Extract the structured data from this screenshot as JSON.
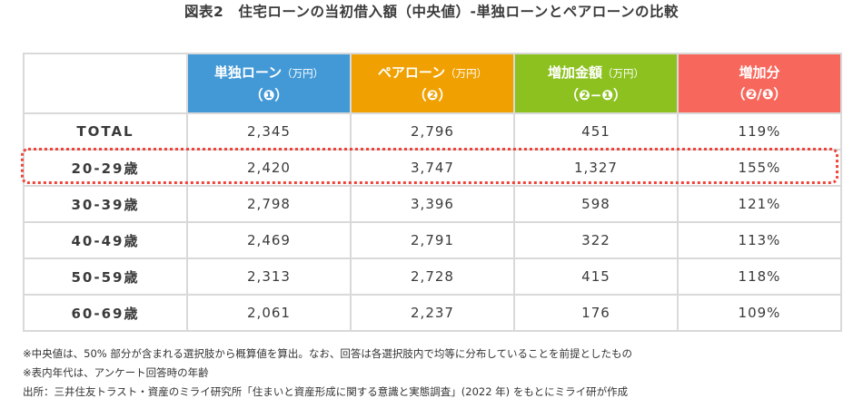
{
  "title": "図表2　住宅ローンの当初借入額（中央値）-単独ローンとペアローンの比較",
  "colors": {
    "single_loan": "#4399d6",
    "pair_loan": "#f0a000",
    "increase_amount": "#8cc11f",
    "increase_ratio": "#f8675c",
    "highlight_border": "#f0443a",
    "grid": "#d9d9d9"
  },
  "table": {
    "headers": [
      {
        "label": "",
        "unit": "",
        "sub": ""
      },
      {
        "label": "単独ローン",
        "unit": "（万円）",
        "sub": "（❶）"
      },
      {
        "label": "ペアローン",
        "unit": "（万円）",
        "sub": "（❷）"
      },
      {
        "label": "増加金額",
        "unit": "（万円）",
        "sub": "（❷−❶）"
      },
      {
        "label": "増加分",
        "unit": "",
        "sub": "（❷/❶）"
      }
    ],
    "rows": [
      {
        "label": "TOTAL",
        "single": "2,345",
        "pair": "2,796",
        "increase": "451",
        "ratio": "119%"
      },
      {
        "label": "20-29歳",
        "single": "2,420",
        "pair": "3,747",
        "increase": "1,327",
        "ratio": "155%"
      },
      {
        "label": "30-39歳",
        "single": "2,798",
        "pair": "3,396",
        "increase": "598",
        "ratio": "121%"
      },
      {
        "label": "40-49歳",
        "single": "2,469",
        "pair": "2,791",
        "increase": "322",
        "ratio": "113%"
      },
      {
        "label": "50-59歳",
        "single": "2,313",
        "pair": "2,728",
        "increase": "415",
        "ratio": "118%"
      },
      {
        "label": "60-69歳",
        "single": "2,061",
        "pair": "2,237",
        "increase": "176",
        "ratio": "109%"
      }
    ],
    "highlighted_row": "20-29歳"
  },
  "notes": [
    "※中央値は、50% 部分が含まれる選択肢から概算値を算出。なお、回答は各選択肢内で均等に分布していることを前提としたもの",
    "※表内年代は、アンケート回答時の年齢",
    "出所：三井住友トラスト・資産のミライ研究所「住まいと資産形成に関する意識と実態調査」(2022 年) をもとにミライ研が作成"
  ]
}
